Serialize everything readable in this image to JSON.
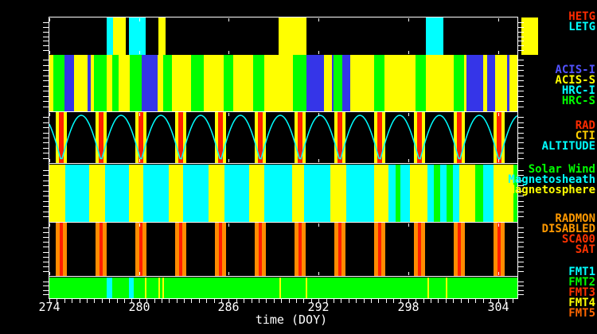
{
  "axis": {
    "xlabel": "time (DOY)",
    "tick_labels": [
      "274",
      "280",
      "286",
      "292",
      "298",
      "304"
    ],
    "tick_values": [
      274,
      280,
      286,
      292,
      298,
      304
    ],
    "x_min": 274,
    "x_max": 305.3,
    "minor_tick_step_days": 0.5
  },
  "legend": {
    "groups": [
      {
        "name": "gratings",
        "items": [
          {
            "label": "HETG",
            "color": "#ff2b00"
          },
          {
            "label": "LETG",
            "color": "#00ffff"
          }
        ]
      },
      {
        "name": "instruments",
        "items": [
          {
            "label": "ACIS-I",
            "color": "#5252ff"
          },
          {
            "label": "ACIS-S",
            "color": "#ffff00"
          },
          {
            "label": "HRC-I",
            "color": "#00ffff"
          },
          {
            "label": "HRC-S",
            "color": "#00ff00"
          }
        ]
      },
      {
        "name": "orbit",
        "items": [
          {
            "label": "RAD",
            "color": "#ff2b00"
          },
          {
            "label": "CTI",
            "color": "#ffd000"
          },
          {
            "label": "ALTITUDE",
            "color": "#00ffff"
          }
        ]
      },
      {
        "name": "regions",
        "items": [
          {
            "label": "Solar Wind",
            "color": "#00ff00"
          },
          {
            "label": "Magnetosheath",
            "color": "#00ffff"
          },
          {
            "label": "Magnetosphere",
            "color": "#ffff00"
          }
        ]
      },
      {
        "name": "radmon",
        "items": [
          {
            "label": "RADMON",
            "color": "#ff9900"
          },
          {
            "label": "DISABLED",
            "color": "#ff9900"
          },
          {
            "label": "SCA00",
            "color": "#ff3300"
          },
          {
            "label": "SAT",
            "color": "#ff3300"
          }
        ]
      },
      {
        "name": "formats",
        "items": [
          {
            "label": "FMT1",
            "color": "#00ffff"
          },
          {
            "label": "FMT2",
            "color": "#00ff00"
          },
          {
            "label": "FMT3",
            "color": "#ff3300"
          },
          {
            "label": "FMT4",
            "color": "#ffff00"
          },
          {
            "label": "FMT5",
            "color": "#ff6600"
          }
        ]
      }
    ]
  },
  "chart_data": {
    "type": "timeline-bands",
    "xlabel": "time (DOY)",
    "x_range": [
      274,
      305.3
    ],
    "x_ticks": [
      274,
      280,
      286,
      292,
      298,
      304
    ],
    "orbital_period_days": 2.662,
    "perigee_doys": [
      274.8,
      277.46,
      280.12,
      282.78,
      285.44,
      288.11,
      290.77,
      293.43,
      296.09,
      298.75,
      301.41,
      304.08
    ],
    "palette": {
      "Y": "#ffff00",
      "C": "#00ffff",
      "G": "#00ff00",
      "B": "#3535e8",
      "R": "#ff1e00",
      "O": "#ff8c00",
      "K": "#000000"
    },
    "bands": [
      {
        "id": "gratings",
        "background": "K",
        "segments": [
          {
            "s": 277.83,
            "e": 278.26,
            "c": "C"
          },
          {
            "s": 278.26,
            "e": 279.11,
            "c": "Y"
          },
          {
            "s": 279.32,
            "e": 280.44,
            "c": "C"
          },
          {
            "s": 281.29,
            "e": 281.77,
            "c": "Y"
          },
          {
            "s": 289.33,
            "e": 291.2,
            "c": "Y"
          },
          {
            "s": 299.19,
            "e": 300.36,
            "c": "C"
          },
          {
            "s": 305.58,
            "e": 306.7,
            "c": "Y"
          }
        ]
      },
      {
        "id": "instruments",
        "background": "Y",
        "segments": [
          {
            "s": 274.27,
            "e": 275.01,
            "c": "G"
          },
          {
            "s": 275.01,
            "e": 275.65,
            "c": "B"
          },
          {
            "s": 276.56,
            "e": 276.77,
            "c": "B"
          },
          {
            "s": 276.98,
            "e": 277.83,
            "c": "G"
          },
          {
            "s": 278.21,
            "e": 278.63,
            "c": "G"
          },
          {
            "s": 279.38,
            "e": 280.18,
            "c": "G"
          },
          {
            "s": 280.18,
            "e": 281.24,
            "c": "B"
          },
          {
            "s": 281.61,
            "e": 282.2,
            "c": "G"
          },
          {
            "s": 283.48,
            "e": 284.33,
            "c": "G"
          },
          {
            "s": 285.66,
            "e": 286.3,
            "c": "G"
          },
          {
            "s": 287.63,
            "e": 288.38,
            "c": "G"
          },
          {
            "s": 290.29,
            "e": 291.2,
            "c": "G"
          },
          {
            "s": 291.2,
            "e": 292.37,
            "c": "B"
          },
          {
            "s": 292.9,
            "e": 293.01,
            "c": "B"
          },
          {
            "s": 293.01,
            "e": 293.6,
            "c": "G"
          },
          {
            "s": 293.6,
            "e": 294.13,
            "c": "B"
          },
          {
            "s": 295.73,
            "e": 296.42,
            "c": "G"
          },
          {
            "s": 298.49,
            "e": 299.19,
            "c": "G"
          },
          {
            "s": 301.05,
            "e": 301.74,
            "c": "G"
          },
          {
            "s": 301.9,
            "e": 303.02,
            "c": "B"
          },
          {
            "s": 303.29,
            "e": 303.82,
            "c": "B"
          },
          {
            "s": 304.62,
            "e": 304.78,
            "c": "B"
          }
        ]
      },
      {
        "id": "orbit",
        "background": "K",
        "altitude_curve": {
          "color": "C"
        },
        "perigee_stripes": {
          "colors": [
            "Y",
            "R",
            "Y"
          ],
          "widths_days": [
            0.21,
            0.32,
            0.21
          ]
        }
      },
      {
        "id": "regions",
        "background": "C",
        "segments": [
          {
            "s": 274.0,
            "e": 275.06,
            "c": "Y"
          },
          {
            "s": 276.66,
            "e": 277.73,
            "c": "Y"
          },
          {
            "s": 279.32,
            "e": 280.28,
            "c": "Y"
          },
          {
            "s": 281.99,
            "e": 282.94,
            "c": "Y"
          },
          {
            "s": 284.65,
            "e": 285.71,
            "c": "Y"
          },
          {
            "s": 287.36,
            "e": 288.38,
            "c": "Y"
          },
          {
            "s": 290.24,
            "e": 291.04,
            "c": "Y"
          },
          {
            "s": 292.8,
            "e": 293.86,
            "c": "Y"
          },
          {
            "s": 295.73,
            "e": 296.68,
            "c": "Y"
          },
          {
            "s": 297.16,
            "e": 297.48,
            "c": "G"
          },
          {
            "s": 298.12,
            "e": 299.29,
            "c": "Y"
          },
          {
            "s": 299.72,
            "e": 300.14,
            "c": "G"
          },
          {
            "s": 300.57,
            "e": 301.0,
            "c": "G"
          },
          {
            "s": 301.42,
            "e": 302.49,
            "c": "Y"
          },
          {
            "s": 302.49,
            "e": 303.02,
            "c": "G"
          },
          {
            "s": 303.71,
            "e": 305.04,
            "c": "Y"
          },
          {
            "s": 305.04,
            "e": 305.31,
            "c": "G"
          }
        ]
      },
      {
        "id": "radmon",
        "background": "K",
        "perigee_stripes": {
          "colors": [
            "O",
            "R",
            "O"
          ],
          "widths_days": [
            0.27,
            0.21,
            0.27
          ]
        }
      },
      {
        "id": "formats",
        "background": "G",
        "segments": [
          {
            "s": 277.83,
            "e": 278.21,
            "c": "C"
          },
          {
            "s": 279.32,
            "e": 279.64,
            "c": "C"
          }
        ],
        "event_lines": {
          "color": "Y",
          "doys": [
            280.39,
            281.29,
            281.56,
            289.39,
            291.15,
            299.29,
            300.52
          ]
        }
      }
    ]
  }
}
